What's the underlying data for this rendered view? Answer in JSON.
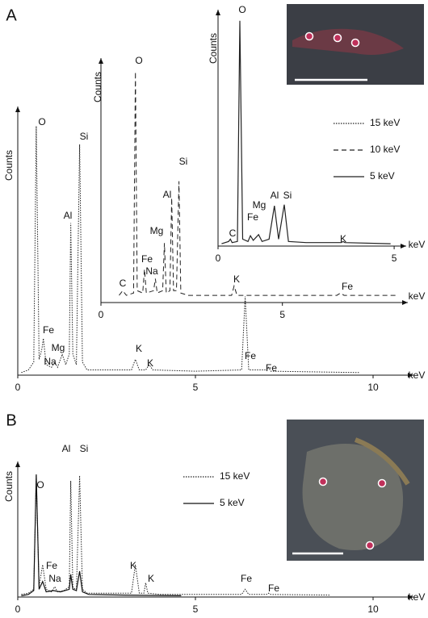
{
  "chart_data": [
    {
      "type": "line",
      "panel": "A",
      "y_label": "Counts",
      "x_label": "keV",
      "xlim": [
        0,
        11
      ],
      "xticks": [
        0,
        5,
        10
      ],
      "ylim": [
        0,
        100
      ],
      "series": [
        {
          "name": "15 keV",
          "color": "#222222",
          "dash": "dotted",
          "x": [
            0.1,
            0.3,
            0.45,
            0.52,
            0.6,
            0.68,
            0.72,
            0.8,
            0.95,
            1.04,
            1.12,
            1.25,
            1.35,
            1.45,
            1.49,
            1.55,
            1.65,
            1.74,
            1.82,
            1.95,
            2.5,
            3.2,
            3.31,
            3.42,
            3.6,
            3.7,
            3.8,
            5,
            6.3,
            6.4,
            6.5,
            7,
            7.06,
            7.12,
            9.6
          ],
          "values": [
            1,
            2,
            5,
            95,
            6,
            10,
            14,
            4,
            3,
            5,
            3,
            8,
            4,
            8,
            58,
            8,
            4,
            88,
            5,
            2,
            2,
            2,
            6,
            2,
            2,
            4,
            2,
            1.5,
            2,
            30,
            2,
            2,
            3,
            1.5,
            1
          ]
        }
      ],
      "annotations": [
        "O",
        "Si",
        "Al",
        "Fe",
        "Mg",
        "Na",
        "K",
        "K",
        "Fe",
        "Fe"
      ]
    },
    {
      "type": "line",
      "y_label": "Counts",
      "x_label": "keV",
      "xlim": [
        0,
        8.3
      ],
      "xticks": [
        0,
        5
      ],
      "ylim": [
        0,
        100
      ],
      "series": [
        {
          "name": "10 keV",
          "color": "#222222",
          "dash": "dashed",
          "x": [
            0.5,
            0.6,
            0.7,
            0.9,
            0.95,
            1.0,
            1.15,
            1.2,
            1.25,
            1.45,
            1.5,
            1.55,
            1.7,
            1.75,
            1.8,
            1.9,
            1.95,
            2.0,
            2.08,
            2.15,
            2.2,
            2.4,
            3.6,
            3.67,
            3.75,
            6.5,
            6.6,
            6.7,
            8.2
          ],
          "values": [
            3,
            5,
            3,
            4,
            97,
            5,
            4,
            14,
            4,
            5,
            10,
            4,
            5,
            25,
            4,
            5,
            44,
            5,
            5,
            51,
            4,
            3,
            3,
            7,
            3,
            3,
            4,
            3,
            3
          ]
        }
      ],
      "annotations": [
        "O",
        "Si",
        "Al",
        "Mg",
        "Fe",
        "Na",
        "C",
        "K",
        "Fe"
      ]
    },
    {
      "type": "line",
      "y_label": "Counts",
      "x_label": "keV",
      "xlim": [
        0,
        5.25
      ],
      "xticks": [
        0,
        5
      ],
      "ylim": [
        0,
        100
      ],
      "series": [
        {
          "name": "5 keV",
          "color": "#222222",
          "dash": "solid",
          "x": [
            0.1,
            0.3,
            0.35,
            0.4,
            0.55,
            0.62,
            0.7,
            0.85,
            0.92,
            1.0,
            1.15,
            1.25,
            1.45,
            1.6,
            1.72,
            1.88,
            2.0,
            2.5,
            3.5,
            3.55,
            3.6,
            4.9
          ],
          "values": [
            1,
            2,
            3,
            1.5,
            2,
            98,
            3,
            2,
            4.5,
            2.5,
            5,
            2,
            3,
            17.5,
            3,
            18,
            2,
            1.5,
            1.5,
            2,
            1.5,
            1
          ]
        }
      ],
      "annotations": [
        "O",
        "Mg",
        "Al",
        "Si",
        "Fe",
        "C",
        "K"
      ]
    },
    {
      "type": "line",
      "panel": "B",
      "y_label": "Counts",
      "x_label": "keV",
      "xlim": [
        0,
        11
      ],
      "xticks": [
        0,
        5,
        10
      ],
      "ylim": [
        0,
        100
      ],
      "series": [
        {
          "name": "15 keV",
          "color": "#222222",
          "dash": "dotted",
          "x": [
            0.1,
            0.3,
            0.45,
            0.52,
            0.6,
            0.7,
            0.8,
            0.95,
            1.04,
            1.12,
            1.3,
            1.45,
            1.49,
            1.55,
            1.65,
            1.74,
            1.82,
            1.95,
            2.5,
            3.2,
            3.31,
            3.42,
            3.55,
            3.6,
            3.66,
            4,
            6.3,
            6.4,
            6.5,
            7,
            7.06,
            7.12,
            8.8
          ],
          "values": [
            2,
            3,
            6,
            94,
            8,
            25,
            6,
            4,
            8,
            4,
            5,
            8,
            90,
            8,
            5,
            94,
            6,
            3,
            3,
            3,
            25,
            3,
            3,
            11,
            3,
            2,
            2,
            6,
            2,
            2,
            3,
            2,
            1.5
          ]
        },
        {
          "name": "5 keV",
          "color": "#111111",
          "dash": "solid",
          "x": [
            0.1,
            0.3,
            0.45,
            0.52,
            0.6,
            0.7,
            0.8,
            1.0,
            1.2,
            1.45,
            1.49,
            1.55,
            1.65,
            1.74,
            1.82,
            2.0,
            3,
            4.6
          ],
          "values": [
            1,
            2,
            5,
            95,
            6,
            12,
            4,
            5,
            4,
            6,
            17.5,
            6,
            5,
            20,
            4,
            2,
            1.5,
            1
          ]
        }
      ],
      "annotations": [
        "O",
        "Al",
        "Si",
        "Fe",
        "Na",
        "K",
        "K",
        "Fe",
        "Fe"
      ]
    }
  ]
}
